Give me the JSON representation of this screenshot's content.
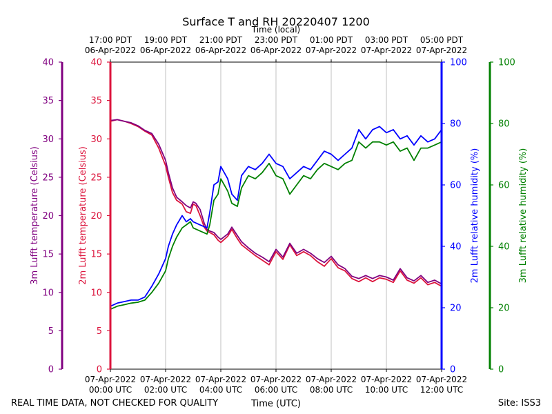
{
  "chart_data": {
    "type": "line",
    "title": "Surface T and RH 20220407 1200",
    "top_axis_title": "Time (local)",
    "bottom_axis_title": "Time (UTC)",
    "footer_left": "REAL TIME DATA, NOT CHECKED FOR QUALITY",
    "footer_right": "Site: ISS3",
    "x_hours_utc": [
      0,
      2,
      4,
      6,
      8,
      10,
      12
    ],
    "x_range": [
      0,
      12
    ],
    "grid_x": true,
    "top_ticks": [
      {
        "line1": "17:00 PDT",
        "line2": "06-Apr-2022"
      },
      {
        "line1": "19:00 PDT",
        "line2": "06-Apr-2022"
      },
      {
        "line1": "21:00 PDT",
        "line2": "06-Apr-2022"
      },
      {
        "line1": "23:00 PDT",
        "line2": "06-Apr-2022"
      },
      {
        "line1": "01:00 PDT",
        "line2": "07-Apr-2022"
      },
      {
        "line1": "03:00 PDT",
        "line2": "07-Apr-2022"
      },
      {
        "line1": "05:00 PDT",
        "line2": "07-Apr-2022"
      }
    ],
    "bottom_ticks": [
      {
        "line1": "07-Apr-2022",
        "line2": "00:00 UTC"
      },
      {
        "line1": "07-Apr-2022",
        "line2": "02:00 UTC"
      },
      {
        "line1": "07-Apr-2022",
        "line2": "04:00 UTC"
      },
      {
        "line1": "07-Apr-2022",
        "line2": "06:00 UTC"
      },
      {
        "line1": "07-Apr-2022",
        "line2": "08:00 UTC"
      },
      {
        "line1": "07-Apr-2022",
        "line2": "10:00 UTC"
      },
      {
        "line1": "07-Apr-2022",
        "line2": "12:00 UTC"
      }
    ],
    "axes": [
      {
        "id": "t3m",
        "label": "3m Lufft temperature (Celsius)",
        "color": "#800080",
        "range": [
          0,
          40
        ],
        "ticks": [
          "0",
          "5",
          "10",
          "15",
          "20",
          "25",
          "30",
          "35",
          "40"
        ]
      },
      {
        "id": "t2m",
        "label": "2m Lufft temperature (Celsius)",
        "color": "#dc143c",
        "range": [
          0,
          40
        ],
        "ticks": [
          "0",
          "5",
          "10",
          "15",
          "20",
          "25",
          "30",
          "35",
          "40"
        ]
      },
      {
        "id": "rh2m",
        "label": "2m Lufft relative humidity (%)",
        "color": "#0000ff",
        "range": [
          0,
          100
        ],
        "ticks": [
          "0",
          "20",
          "40",
          "60",
          "80",
          "100"
        ]
      },
      {
        "id": "rh3m",
        "label": "3m Lufft relative humidity (%)",
        "color": "#008000",
        "range": [
          0,
          100
        ],
        "ticks": [
          "0",
          "20",
          "40",
          "60",
          "80",
          "100"
        ]
      }
    ],
    "series": [
      {
        "name": "2m Lufft temperature",
        "axis": "t2m",
        "color": "#dc143c",
        "x": [
          0,
          0.25,
          0.5,
          0.75,
          1,
          1.25,
          1.5,
          1.75,
          2,
          2.1,
          2.25,
          2.4,
          2.6,
          2.75,
          2.9,
          3.0,
          3.1,
          3.25,
          3.4,
          3.5,
          3.6,
          3.75,
          3.9,
          4.0,
          4.25,
          4.4,
          4.6,
          4.75,
          5.0,
          5.25,
          5.5,
          5.75,
          6.0,
          6.25,
          6.5,
          6.75,
          7.0,
          7.25,
          7.5,
          7.75,
          8.0,
          8.25,
          8.5,
          8.75,
          9.0,
          9.25,
          9.5,
          9.75,
          10.0,
          10.25,
          10.5,
          10.75,
          11.0,
          11.25,
          11.5,
          11.75,
          12.0
        ],
        "values": [
          32.3,
          32.5,
          32.3,
          32.0,
          31.6,
          31.0,
          30.5,
          28.8,
          26.5,
          25.0,
          23.0,
          22.0,
          21.5,
          20.5,
          20.3,
          21.5,
          21.3,
          20.0,
          18.5,
          18.0,
          17.8,
          17.5,
          16.8,
          16.5,
          17.3,
          18.2,
          17.0,
          16.2,
          15.5,
          14.8,
          14.2,
          13.6,
          15.3,
          14.3,
          16.2,
          14.8,
          15.3,
          14.8,
          14.0,
          13.4,
          14.4,
          13.2,
          12.8,
          11.8,
          11.4,
          11.9,
          11.4,
          11.9,
          11.7,
          11.3,
          12.8,
          11.6,
          11.2,
          11.9,
          11.0,
          11.3,
          10.8
        ]
      },
      {
        "name": "3m Lufft temperature",
        "axis": "t3m",
        "color": "#800080",
        "x": [
          0,
          0.25,
          0.5,
          0.75,
          1,
          1.25,
          1.5,
          1.75,
          2,
          2.1,
          2.25,
          2.4,
          2.6,
          2.75,
          2.9,
          3.0,
          3.1,
          3.25,
          3.4,
          3.5,
          3.6,
          3.75,
          3.9,
          4.0,
          4.25,
          4.4,
          4.6,
          4.75,
          5.0,
          5.25,
          5.5,
          5.75,
          6.0,
          6.25,
          6.5,
          6.75,
          7.0,
          7.25,
          7.5,
          7.75,
          8.0,
          8.25,
          8.5,
          8.75,
          9.0,
          9.25,
          9.5,
          9.75,
          10.0,
          10.25,
          10.5,
          10.75,
          11.0,
          11.25,
          11.5,
          11.75,
          12.0
        ],
        "values": [
          32.4,
          32.5,
          32.3,
          32.1,
          31.7,
          31.1,
          30.7,
          29.3,
          27.2,
          25.6,
          23.6,
          22.4,
          21.8,
          21.3,
          21.0,
          21.8,
          21.6,
          20.8,
          19.0,
          18.2,
          18.0,
          17.8,
          17.2,
          16.9,
          17.6,
          18.5,
          17.4,
          16.6,
          15.8,
          15.1,
          14.6,
          14.0,
          15.6,
          14.6,
          16.4,
          15.1,
          15.6,
          15.1,
          14.4,
          13.9,
          14.7,
          13.6,
          13.1,
          12.1,
          11.8,
          12.2,
          11.8,
          12.2,
          12.0,
          11.6,
          13.1,
          11.9,
          11.5,
          12.2,
          11.3,
          11.6,
          11.1
        ]
      },
      {
        "name": "2m Lufft relative humidity",
        "axis": "rh2m",
        "color": "#0000ff",
        "x": [
          0,
          0.25,
          0.5,
          0.75,
          1,
          1.25,
          1.5,
          1.75,
          2,
          2.1,
          2.25,
          2.4,
          2.6,
          2.75,
          2.9,
          3.0,
          3.25,
          3.5,
          3.6,
          3.75,
          3.9,
          4.0,
          4.25,
          4.4,
          4.6,
          4.75,
          5.0,
          5.25,
          5.5,
          5.75,
          6.0,
          6.25,
          6.5,
          6.75,
          7.0,
          7.25,
          7.5,
          7.75,
          8.0,
          8.25,
          8.5,
          8.75,
          9.0,
          9.25,
          9.5,
          9.75,
          10.0,
          10.25,
          10.5,
          10.75,
          11.0,
          11.25,
          11.5,
          11.75,
          12.0
        ],
        "values": [
          20.5,
          21.5,
          22.0,
          22.5,
          22.5,
          23.5,
          27.0,
          31.0,
          36.0,
          40.0,
          44.0,
          47.0,
          50.0,
          48.0,
          49.0,
          48.0,
          47.0,
          46.0,
          51.0,
          60.0,
          61.0,
          66.0,
          62.0,
          57.0,
          55.0,
          63.0,
          66.0,
          65.0,
          67.0,
          70.0,
          67.0,
          66.0,
          62.0,
          64.0,
          66.0,
          65.0,
          68.0,
          71.0,
          70.0,
          68.0,
          70.0,
          72.0,
          78.0,
          75.0,
          78.0,
          79.0,
          77.0,
          78.0,
          75.0,
          76.0,
          73.0,
          76.0,
          74.0,
          75.0,
          78.0
        ]
      },
      {
        "name": "3m Lufft relative humidity",
        "axis": "rh3m",
        "color": "#008000",
        "x": [
          0,
          0.25,
          0.5,
          0.75,
          1,
          1.25,
          1.5,
          1.75,
          2,
          2.1,
          2.25,
          2.4,
          2.6,
          2.75,
          2.9,
          3.0,
          3.25,
          3.5,
          3.6,
          3.75,
          3.9,
          4.0,
          4.25,
          4.4,
          4.6,
          4.75,
          5.0,
          5.25,
          5.5,
          5.75,
          6.0,
          6.25,
          6.5,
          6.75,
          7.0,
          7.25,
          7.5,
          7.75,
          8.0,
          8.25,
          8.5,
          8.75,
          9.0,
          9.25,
          9.5,
          9.75,
          10.0,
          10.25,
          10.5,
          10.75,
          11.0,
          11.25,
          11.5,
          11.75,
          12.0
        ],
        "values": [
          19.5,
          20.5,
          21.0,
          21.5,
          21.8,
          22.5,
          25.0,
          28.0,
          32.0,
          36.0,
          40.0,
          43.0,
          46.0,
          47.0,
          48.0,
          46.0,
          45.0,
          44.0,
          47.0,
          55.0,
          57.0,
          62.0,
          58.0,
          54.0,
          53.0,
          59.0,
          63.0,
          62.0,
          64.0,
          67.0,
          63.0,
          62.0,
          57.0,
          60.0,
          63.0,
          62.0,
          65.0,
          67.0,
          66.0,
          65.0,
          67.0,
          68.0,
          74.0,
          72.0,
          74.0,
          74.0,
          73.0,
          74.0,
          71.0,
          72.0,
          68.0,
          72.0,
          72.0,
          73.0,
          74.0
        ]
      }
    ]
  }
}
